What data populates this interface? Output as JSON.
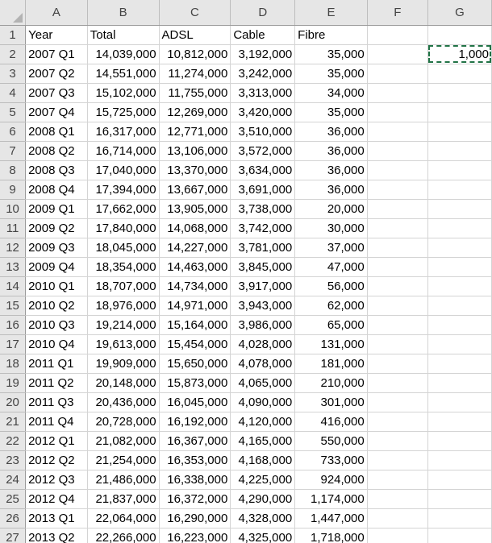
{
  "sheet": {
    "columns": [
      "A",
      "B",
      "C",
      "D",
      "E",
      "F",
      "G"
    ],
    "header": [
      "Year",
      "Total",
      "ADSL",
      "Cable",
      "Fibre"
    ],
    "selected_cell": {
      "ref": "G2",
      "value": "1,000"
    },
    "rows": [
      [
        "2007 Q1",
        "14,039,000",
        "10,812,000",
        "3,192,000",
        "35,000"
      ],
      [
        "2007 Q2",
        "14,551,000",
        "11,274,000",
        "3,242,000",
        "35,000"
      ],
      [
        "2007 Q3",
        "15,102,000",
        "11,755,000",
        "3,313,000",
        "34,000"
      ],
      [
        "2007 Q4",
        "15,725,000",
        "12,269,000",
        "3,420,000",
        "35,000"
      ],
      [
        "2008 Q1",
        "16,317,000",
        "12,771,000",
        "3,510,000",
        "36,000"
      ],
      [
        "2008 Q2",
        "16,714,000",
        "13,106,000",
        "3,572,000",
        "36,000"
      ],
      [
        "2008 Q3",
        "17,040,000",
        "13,370,000",
        "3,634,000",
        "36,000"
      ],
      [
        "2008 Q4",
        "17,394,000",
        "13,667,000",
        "3,691,000",
        "36,000"
      ],
      [
        "2009 Q1",
        "17,662,000",
        "13,905,000",
        "3,738,000",
        "20,000"
      ],
      [
        "2009 Q2",
        "17,840,000",
        "14,068,000",
        "3,742,000",
        "30,000"
      ],
      [
        "2009 Q3",
        "18,045,000",
        "14,227,000",
        "3,781,000",
        "37,000"
      ],
      [
        "2009 Q4",
        "18,354,000",
        "14,463,000",
        "3,845,000",
        "47,000"
      ],
      [
        "2010 Q1",
        "18,707,000",
        "14,734,000",
        "3,917,000",
        "56,000"
      ],
      [
        "2010 Q2",
        "18,976,000",
        "14,971,000",
        "3,943,000",
        "62,000"
      ],
      [
        "2010 Q3",
        "19,214,000",
        "15,164,000",
        "3,986,000",
        "65,000"
      ],
      [
        "2010 Q4",
        "19,613,000",
        "15,454,000",
        "4,028,000",
        "131,000"
      ],
      [
        "2011 Q1",
        "19,909,000",
        "15,650,000",
        "4,078,000",
        "181,000"
      ],
      [
        "2011 Q2",
        "20,148,000",
        "15,873,000",
        "4,065,000",
        "210,000"
      ],
      [
        "2011 Q3",
        "20,436,000",
        "16,045,000",
        "4,090,000",
        "301,000"
      ],
      [
        "2011 Q4",
        "20,728,000",
        "16,192,000",
        "4,120,000",
        "416,000"
      ],
      [
        "2012 Q1",
        "21,082,000",
        "16,367,000",
        "4,165,000",
        "550,000"
      ],
      [
        "2012 Q2",
        "21,254,000",
        "16,353,000",
        "4,168,000",
        "733,000"
      ],
      [
        "2012 Q3",
        "21,486,000",
        "16,338,000",
        "4,225,000",
        "924,000"
      ],
      [
        "2012 Q4",
        "21,837,000",
        "16,372,000",
        "4,290,000",
        "1,174,000"
      ],
      [
        "2013 Q1",
        "22,064,000",
        "16,290,000",
        "4,328,000",
        "1,447,000"
      ],
      [
        "2013 Q2",
        "22,266,000",
        "16,223,000",
        "4,325,000",
        "1,718,000"
      ]
    ]
  }
}
